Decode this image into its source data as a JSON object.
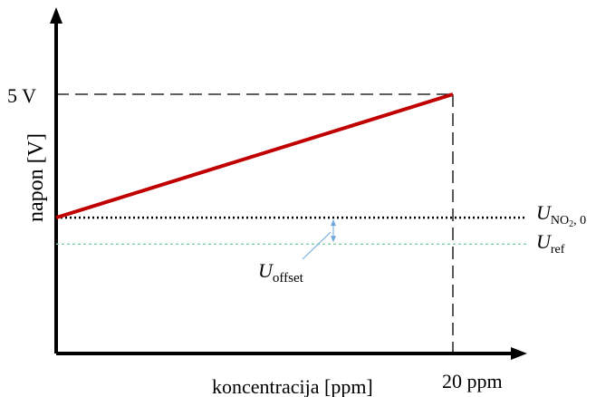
{
  "chart_data": {
    "type": "line",
    "xlabel": "koncentracija [ppm]",
    "ylabel": "napon [V]",
    "x_tick_label": "20 ppm",
    "y_tick_label": "5 V",
    "xlim": [
      0,
      20
    ],
    "ylim": [
      0,
      5
    ],
    "series": [
      {
        "x": [
          0,
          20
        ],
        "y": [
          2.62,
          5.0
        ],
        "color": "#c00000"
      }
    ],
    "reference_lines": {
      "u_no2_0": {
        "value": 2.62,
        "label_main": "U",
        "label_sub": "NO",
        "label_sub2": "2",
        "label_sub_tail": ", 0",
        "color": "#000000"
      },
      "u_ref": {
        "value": 2.11,
        "label_main": "U",
        "label_sub": "ref",
        "color": "#7fd0a0"
      }
    },
    "annotation": {
      "label_main": "U",
      "label_sub": "offset",
      "arrow_color": "#6fa8dc"
    }
  }
}
